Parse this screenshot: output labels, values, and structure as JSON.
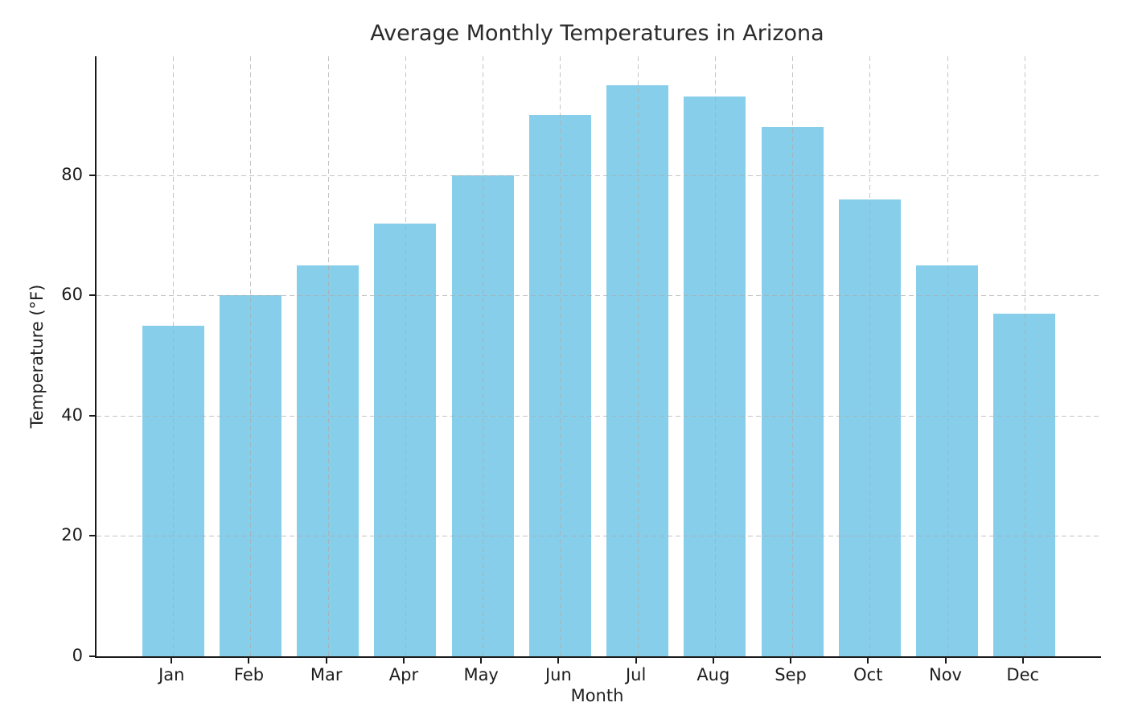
{
  "chart_data": {
    "type": "bar",
    "title": "Average Monthly Temperatures in Arizona",
    "xlabel": "Month",
    "ylabel": "Temperature (°F)",
    "categories": [
      "Jan",
      "Feb",
      "Mar",
      "Apr",
      "May",
      "Jun",
      "Jul",
      "Aug",
      "Sep",
      "Oct",
      "Nov",
      "Dec"
    ],
    "values": [
      55,
      60,
      65,
      72,
      80,
      90,
      95,
      93,
      88,
      76,
      65,
      57
    ],
    "yticks": [
      0,
      20,
      40,
      60,
      80
    ],
    "ylim": [
      0,
      99.75
    ],
    "xlim": [
      -0.99,
      11.99
    ],
    "bar_width": 0.8,
    "bar_color": "#87CEEB",
    "grid": true,
    "grid_style": "dashed",
    "grid_color": "#adadad",
    "spine_color": "#1a1a1a",
    "legend_position": "none"
  }
}
